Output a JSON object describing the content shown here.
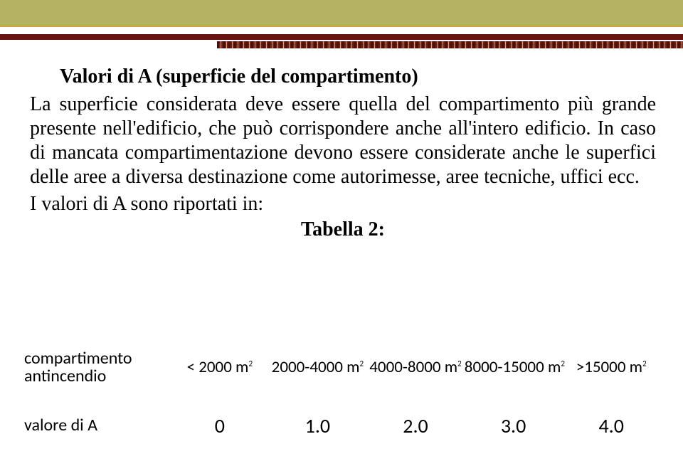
{
  "title": "Valori di A (superficie del compartimento)",
  "paragraph": "La superficie considerata deve essere quella del compartimento più grande presente nell'edificio, che può corrispondere anche all'intero edificio. In caso di mancata compartimentazione devono essere considerate anche le superfici delle aree a diversa destinazione come autorimesse, aree tecniche, uffici ecc.",
  "list_line": "I valori di A sono riportati in:",
  "table_label": "Tabella 2:",
  "table": {
    "row1_label_line1": "compartimento",
    "row1_label_line2": "antincendio",
    "row2_label": "valore di A",
    "columns": [
      {
        "head_pre": "< 2000 m",
        "head_sup": "2",
        "value": "0"
      },
      {
        "head_pre": "2000-4000 m",
        "head_sup": "2",
        "value": "1.0"
      },
      {
        "head_pre": "4000-8000 m",
        "head_sup": "2",
        "value": "2.0"
      },
      {
        "head_pre": "8000-15000 m",
        "head_sup": "2",
        "value": "3.0"
      },
      {
        "head_pre": ">15000 m",
        "head_sup": "2",
        "value": "4.0"
      }
    ]
  },
  "colors": {
    "olive": "#b5b261",
    "gold": "#c5a64a",
    "dark_red": "#6a1412"
  }
}
